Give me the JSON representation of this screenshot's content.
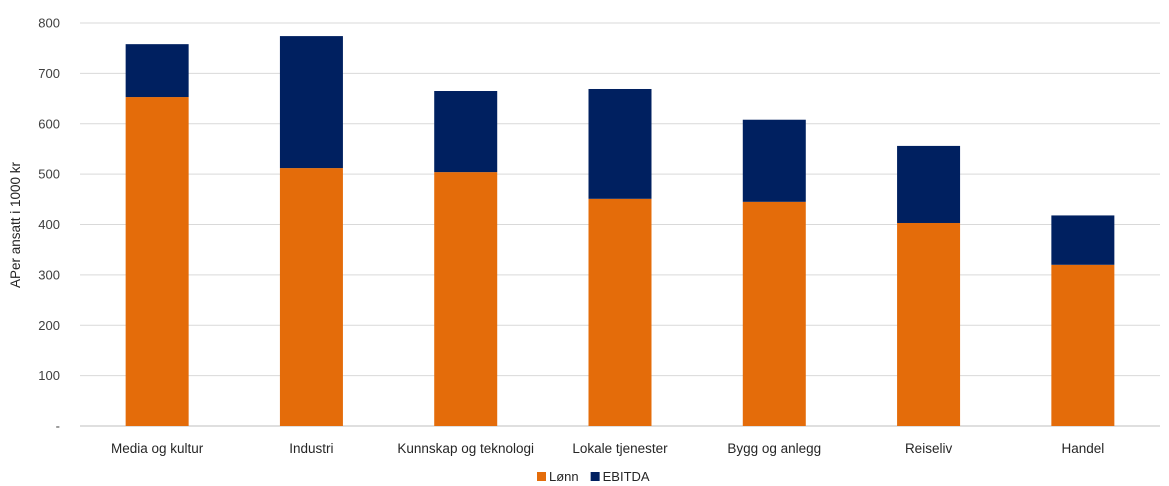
{
  "chart_data": {
    "type": "bar",
    "stacked": true,
    "categories": [
      "Media og kultur",
      "Industri",
      "Kunnskap og teknologi",
      "Lokale tjenester",
      "Bygg og anlegg",
      "Reiseliv",
      "Handel"
    ],
    "series": [
      {
        "name": "Lønn",
        "color": "#e46c0a",
        "values": [
          653,
          512,
          504,
          451,
          445,
          403,
          320
        ]
      },
      {
        "name": "EBITDA",
        "color": "#002060",
        "values": [
          105,
          262,
          161,
          218,
          163,
          153,
          98
        ]
      }
    ],
    "ylabel": "APer ansatt i 1000 kr",
    "xlabel": "",
    "title": "",
    "ylim": [
      0,
      800
    ],
    "yticks": [
      "-",
      "100",
      "200",
      "300",
      "400",
      "500",
      "600",
      "700",
      "800"
    ],
    "grid": true,
    "legend": "bottom"
  }
}
